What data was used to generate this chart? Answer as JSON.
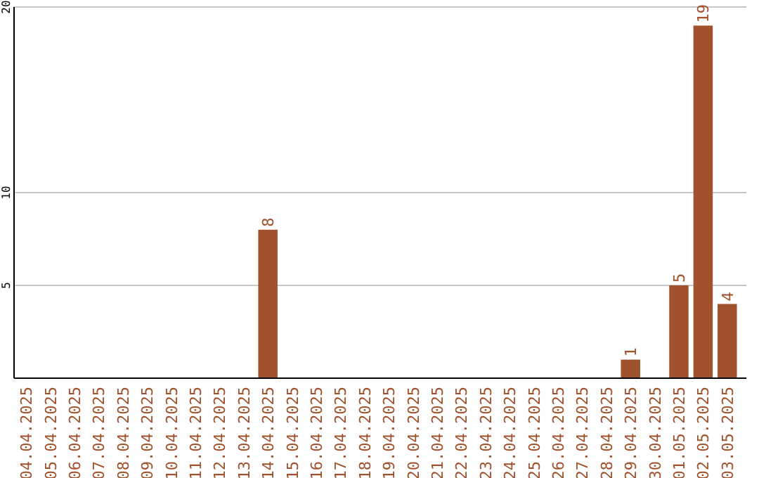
{
  "chart_data": {
    "type": "bar",
    "categories": [
      "04.04.2025",
      "05.04.2025",
      "06.04.2025",
      "07.04.2025",
      "08.04.2025",
      "09.04.2025",
      "10.04.2025",
      "11.04.2025",
      "12.04.2025",
      "13.04.2025",
      "14.04.2025",
      "15.04.2025",
      "16.04.2025",
      "17.04.2025",
      "18.04.2025",
      "19.04.2025",
      "20.04.2025",
      "21.04.2025",
      "22.04.2025",
      "23.04.2025",
      "24.04.2025",
      "25.04.2025",
      "26.04.2025",
      "27.04.2025",
      "28.04.2025",
      "29.04.2025",
      "30.04.2025",
      "01.05.2025",
      "02.05.2025",
      "03.05.2025"
    ],
    "values": [
      0,
      0,
      0,
      0,
      0,
      0,
      0,
      0,
      0,
      0,
      8,
      0,
      0,
      0,
      0,
      0,
      0,
      0,
      0,
      0,
      0,
      0,
      0,
      0,
      0,
      1,
      0,
      5,
      19,
      4
    ],
    "value_labels": [
      null,
      null,
      null,
      null,
      null,
      null,
      null,
      null,
      null,
      null,
      "8",
      null,
      null,
      null,
      null,
      null,
      null,
      null,
      null,
      null,
      null,
      null,
      null,
      null,
      null,
      "1",
      null,
      "5",
      "19",
      "4"
    ],
    "color": "#a0522d",
    "ylim": [
      0,
      20
    ],
    "yticks": [
      5,
      10,
      20
    ],
    "grid": "y"
  }
}
